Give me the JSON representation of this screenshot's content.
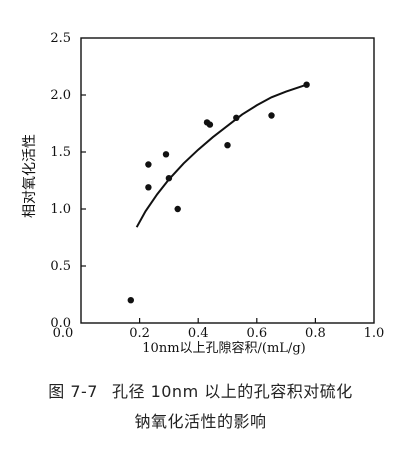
{
  "figure": {
    "number": "图 7-7",
    "caption_line1": "孔径 10nm 以上的孔容积对硫化",
    "caption_line2": "钠氧化活性的影响"
  },
  "chart_data": {
    "type": "scatter",
    "title": "",
    "xlabel": "10nm以上孔隙容积/(mL/g)",
    "ylabel": "相对氧化活性",
    "xlim": [
      0.0,
      1.0
    ],
    "ylim": [
      0.0,
      2.5
    ],
    "xticks": [
      "0.0",
      "0.2",
      "0.4",
      "0.6",
      "0.8",
      "1.0"
    ],
    "yticks": [
      "0.0",
      "0.5",
      "1.0",
      "1.5",
      "2.0",
      "2.5"
    ],
    "grid": false,
    "series": [
      {
        "type": "scatter",
        "x": [
          0.17,
          0.23,
          0.23,
          0.29,
          0.3,
          0.33,
          0.43,
          0.44,
          0.5,
          0.53,
          0.65,
          0.77
        ],
        "y": [
          0.2,
          1.19,
          1.39,
          1.48,
          1.27,
          1.0,
          1.76,
          1.74,
          1.56,
          1.8,
          1.82,
          2.09
        ]
      },
      {
        "type": "line",
        "x": [
          0.19,
          0.22,
          0.26,
          0.3,
          0.35,
          0.4,
          0.45,
          0.5,
          0.55,
          0.6,
          0.65,
          0.7,
          0.77
        ],
        "y": [
          0.84,
          0.98,
          1.13,
          1.26,
          1.4,
          1.52,
          1.63,
          1.73,
          1.83,
          1.91,
          1.98,
          2.03,
          2.09
        ]
      }
    ]
  }
}
